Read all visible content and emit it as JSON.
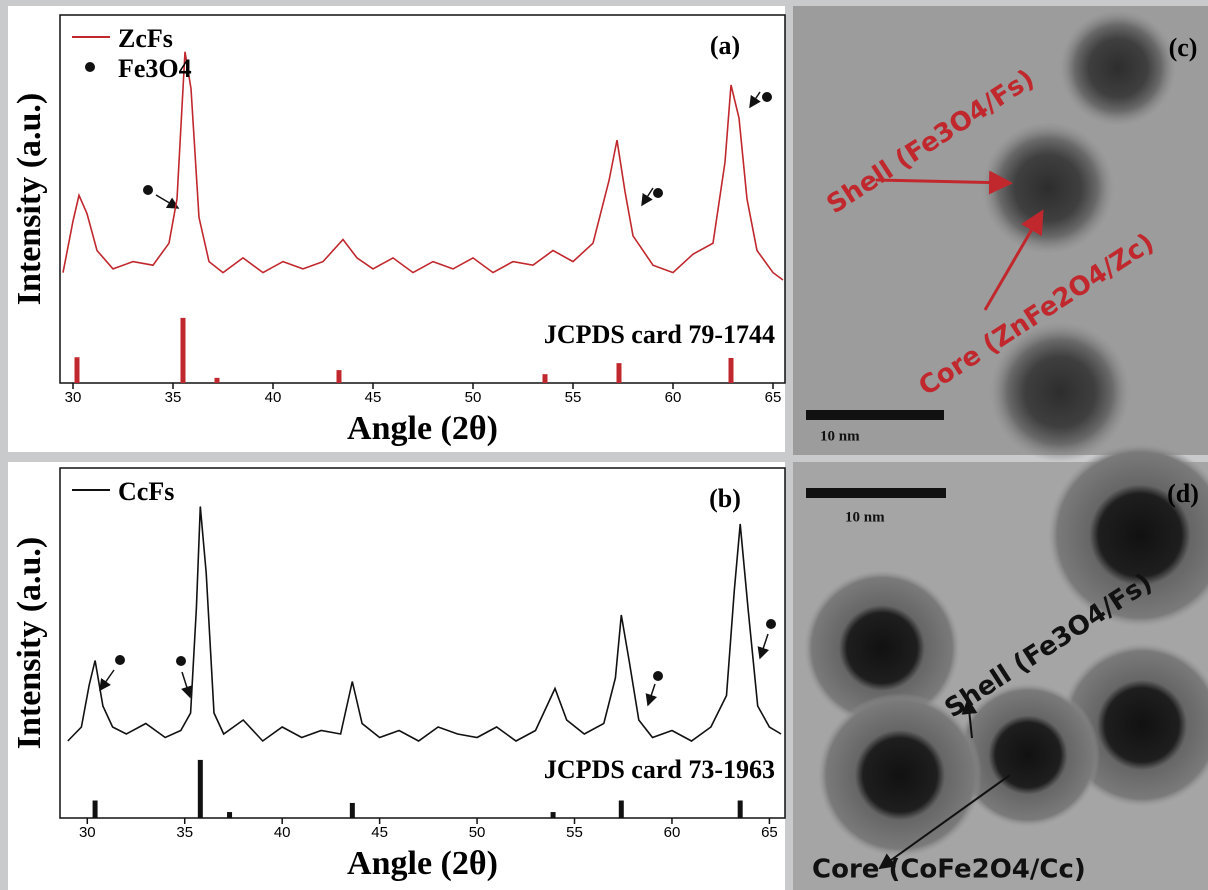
{
  "chart_data": [
    {
      "type": "line",
      "panel_label": "(a)",
      "x_label": "Angle (2θ)",
      "y_label": "Intensity (a.u.)",
      "xlim": [
        29.35,
        65.6
      ],
      "ylim": [
        0,
        100
      ],
      "xticks": [
        30,
        35,
        40,
        45,
        50,
        55,
        60,
        65
      ],
      "x": [
        29.5,
        30,
        30.3,
        30.7,
        31.2,
        32,
        33,
        34,
        34.8,
        35.2,
        35.6,
        35.9,
        36.3,
        36.8,
        37.5,
        38.5,
        39.5,
        40.5,
        41.5,
        42.5,
        43.5,
        44.2,
        45,
        46,
        47,
        48,
        49,
        50,
        51,
        52,
        53,
        54,
        55,
        56,
        56.8,
        57.2,
        57.6,
        58,
        59,
        60,
        61,
        62,
        62.6,
        62.9,
        63.3,
        63.7,
        64.2,
        65,
        65.5
      ],
      "series": [
        {
          "name": "ZcFs",
          "color": "#c0282d",
          "values": [
            30,
            44,
            51,
            46,
            36,
            31,
            33,
            32,
            38,
            50,
            90,
            80,
            45,
            33,
            30,
            34,
            30,
            33,
            31,
            33,
            39,
            34,
            31,
            34,
            30,
            33,
            31,
            34,
            30,
            33,
            32,
            36,
            33,
            38,
            55,
            66,
            52,
            40,
            32,
            30,
            35,
            38,
            60,
            81,
            72,
            50,
            36,
            30,
            28
          ]
        }
      ],
      "marker_legend": "Fe3O4",
      "reference": {
        "label": "JCPDS card 79-1744",
        "color": "#c0282d",
        "x": [
          30.2,
          35.5,
          37.2,
          43.3,
          53.6,
          57.3,
          62.9
        ],
        "values": [
          7,
          17.7,
          1.4,
          3.5,
          2.4,
          5.4,
          6.8
        ]
      }
    },
    {
      "type": "line",
      "panel_label": "(b)",
      "x_label": "Angle (2θ)",
      "y_label": "Intensity (a.u.)",
      "xlim": [
        28.6,
        65.8
      ],
      "ylim": [
        0,
        100
      ],
      "xticks": [
        30,
        35,
        40,
        45,
        50,
        55,
        60,
        65
      ],
      "x": [
        29,
        29.7,
        30.1,
        30.4,
        30.8,
        31.3,
        32,
        33,
        34,
        34.8,
        35.3,
        35.6,
        35.8,
        36.1,
        36.5,
        37,
        38,
        39,
        40,
        41,
        42,
        43,
        43.6,
        44.1,
        45,
        46,
        47,
        48,
        49,
        50,
        51,
        52,
        53,
        54,
        54.6,
        55.5,
        56.5,
        57.1,
        57.4,
        57.8,
        58.3,
        59,
        60,
        61,
        62,
        62.8,
        63.2,
        63.5,
        63.9,
        64.4,
        65,
        65.6
      ],
      "series": [
        {
          "name": "CcFs",
          "color": "#111111",
          "values": [
            22,
            26,
            38,
            45,
            32,
            26,
            24,
            27,
            23,
            25,
            30,
            60,
            89,
            70,
            30,
            24,
            28,
            22,
            26,
            23,
            25,
            24,
            39,
            27,
            23,
            25,
            22,
            26,
            24,
            23,
            26,
            22,
            25,
            37,
            28,
            24,
            27,
            40,
            58,
            45,
            28,
            23,
            25,
            22,
            26,
            35,
            65,
            84,
            60,
            32,
            26,
            24
          ]
        }
      ],
      "reference": {
        "label": "JCPDS card 73-1963",
        "color": "#111111",
        "x": [
          30.4,
          35.8,
          37.3,
          43.6,
          53.9,
          57.4,
          63.5
        ],
        "values": [
          5,
          16.6,
          1.7,
          4.3,
          1.7,
          5,
          5
        ]
      }
    }
  ],
  "images": [
    {
      "panel_label": "(c)",
      "scale": "10 nm",
      "shell": "Shell (Fe3O4/Fs)",
      "core": "Core (ZnFe2O4/Zc)"
    },
    {
      "panel_label": "(d)",
      "scale": "10 nm",
      "shell": "Shell (Fe3O4/Fs)",
      "core": "Core (CoFe2O4/Cc)"
    }
  ]
}
